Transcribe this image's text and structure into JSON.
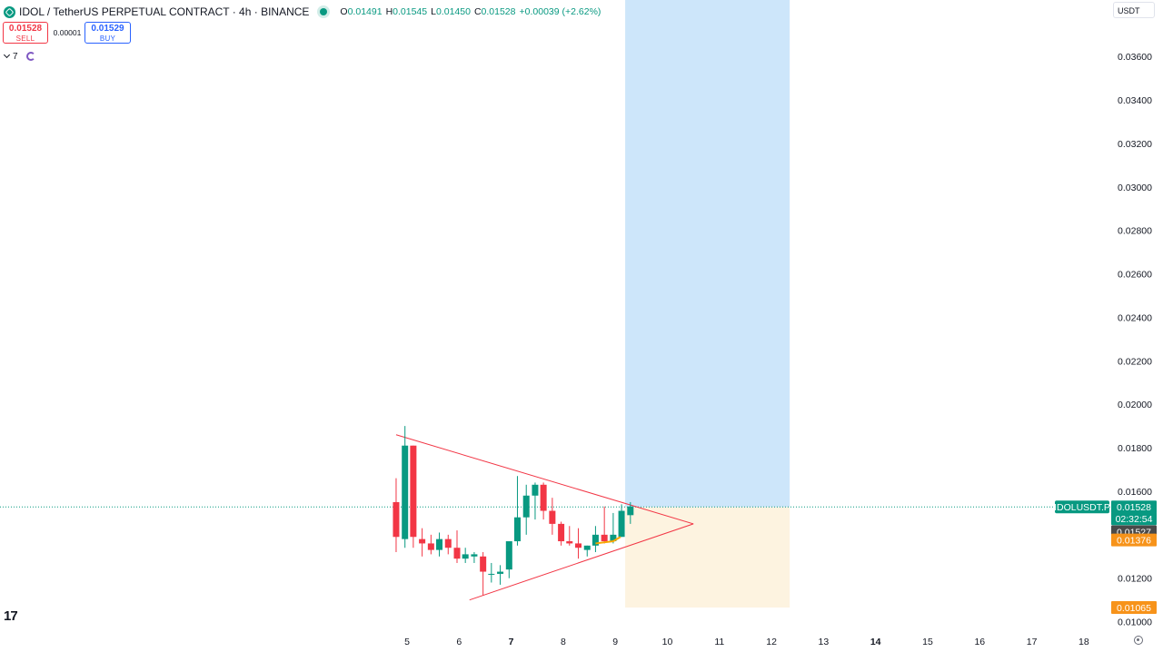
{
  "header": {
    "title": "IDOL / TetherUS PERPETUAL CONTRACT · 4h · BINANCE",
    "ohlc": {
      "o_label": "O",
      "o": "0.01491",
      "h_label": "H",
      "h": "0.01545",
      "l_label": "L",
      "l": "0.01450",
      "c_label": "C",
      "c": "0.01528",
      "change": "+0.00039 (+2.62%)"
    }
  },
  "trade": {
    "sell_price": "0.01528",
    "sell_label": "SELL",
    "spread": "0.00001",
    "buy_price": "0.01529",
    "buy_label": "BUY"
  },
  "indicators": {
    "count": "7"
  },
  "currency": "USDT",
  "branding": {
    "logo_text": "17"
  },
  "colors": {
    "up": "#089981",
    "down": "#f23645",
    "triangle": "#f23645",
    "target_zone": "#cde6fa",
    "stop_zone": "#fdf3e0",
    "current_price_line": "#089981",
    "stop_tag": "#f7931a",
    "countdown_tag": "#4a4a4a",
    "avg_line": "#f7a600"
  },
  "chart_data": {
    "type": "candlestick",
    "symbol_tag": "IDOLUSDT.P",
    "x_labels": [
      "5",
      "6",
      "7",
      "8",
      "9",
      "10",
      "11",
      "12",
      "13",
      "14",
      "15",
      "16",
      "17",
      "18"
    ],
    "x_bold": [
      "7",
      "14"
    ],
    "y_ticks": [
      "0.03600",
      "0.03400",
      "0.03200",
      "0.03000",
      "0.02800",
      "0.02600",
      "0.02400",
      "0.02200",
      "0.02000",
      "0.01800",
      "0.01600",
      "0.01200",
      "0.01000"
    ],
    "y_range": [
      0.0099,
      0.0386
    ],
    "x_range": [
      4.7,
      18.75
    ],
    "candles": [
      {
        "x": 4.79,
        "o": 0.0155,
        "h": 0.0166,
        "l": 0.0132,
        "c": 0.0139
      },
      {
        "x": 4.96,
        "o": 0.0138,
        "h": 0.019,
        "l": 0.0134,
        "c": 0.0181
      },
      {
        "x": 5.12,
        "o": 0.0181,
        "h": 0.0181,
        "l": 0.0134,
        "c": 0.0139
      },
      {
        "x": 5.29,
        "o": 0.0138,
        "h": 0.0143,
        "l": 0.013,
        "c": 0.0136
      },
      {
        "x": 5.46,
        "o": 0.0136,
        "h": 0.014,
        "l": 0.0131,
        "c": 0.0133
      },
      {
        "x": 5.62,
        "o": 0.0133,
        "h": 0.0141,
        "l": 0.013,
        "c": 0.0138
      },
      {
        "x": 5.79,
        "o": 0.0138,
        "h": 0.014,
        "l": 0.0131,
        "c": 0.0134
      },
      {
        "x": 5.96,
        "o": 0.0134,
        "h": 0.0142,
        "l": 0.0127,
        "c": 0.0129
      },
      {
        "x": 6.12,
        "o": 0.0129,
        "h": 0.0134,
        "l": 0.0127,
        "c": 0.0131
      },
      {
        "x": 6.29,
        "o": 0.013,
        "h": 0.0132,
        "l": 0.0127,
        "c": 0.0131
      },
      {
        "x": 6.46,
        "o": 0.013,
        "h": 0.0132,
        "l": 0.0112,
        "c": 0.0123
      },
      {
        "x": 6.62,
        "o": 0.0122,
        "h": 0.0127,
        "l": 0.0118,
        "c": 0.0122
      },
      {
        "x": 6.79,
        "o": 0.0122,
        "h": 0.0126,
        "l": 0.0117,
        "c": 0.0123
      },
      {
        "x": 6.96,
        "o": 0.0124,
        "h": 0.0136,
        "l": 0.012,
        "c": 0.0137
      },
      {
        "x": 7.12,
        "o": 0.0137,
        "h": 0.0167,
        "l": 0.0135,
        "c": 0.0148
      },
      {
        "x": 7.29,
        "o": 0.0148,
        "h": 0.0163,
        "l": 0.014,
        "c": 0.0158
      },
      {
        "x": 7.46,
        "o": 0.0158,
        "h": 0.0164,
        "l": 0.0147,
        "c": 0.0163
      },
      {
        "x": 7.62,
        "o": 0.0163,
        "h": 0.0164,
        "l": 0.0147,
        "c": 0.0151
      },
      {
        "x": 7.79,
        "o": 0.0151,
        "h": 0.0157,
        "l": 0.014,
        "c": 0.0145
      },
      {
        "x": 7.96,
        "o": 0.0145,
        "h": 0.0146,
        "l": 0.0135,
        "c": 0.0137
      },
      {
        "x": 8.12,
        "o": 0.0137,
        "h": 0.0144,
        "l": 0.0135,
        "c": 0.0136
      },
      {
        "x": 8.29,
        "o": 0.0136,
        "h": 0.0143,
        "l": 0.0129,
        "c": 0.0134
      },
      {
        "x": 8.46,
        "o": 0.0133,
        "h": 0.0135,
        "l": 0.013,
        "c": 0.0135
      },
      {
        "x": 8.62,
        "o": 0.0135,
        "h": 0.0144,
        "l": 0.0132,
        "c": 0.014
      },
      {
        "x": 8.79,
        "o": 0.014,
        "h": 0.0153,
        "l": 0.0136,
        "c": 0.0137
      },
      {
        "x": 8.96,
        "o": 0.0137,
        "h": 0.015,
        "l": 0.0136,
        "c": 0.014
      },
      {
        "x": 9.12,
        "o": 0.0139,
        "h": 0.0154,
        "l": 0.0139,
        "c": 0.0151
      },
      {
        "x": 9.29,
        "o": 0.0149,
        "h": 0.0155,
        "l": 0.0145,
        "c": 0.0153
      }
    ],
    "triangle": {
      "upper": [
        [
          4.79,
          0.0186
        ],
        [
          10.5,
          0.0145
        ]
      ],
      "lower": [
        [
          6.2,
          0.011
        ],
        [
          10.5,
          0.0145
        ]
      ]
    },
    "avg_line": [
      [
        8.62,
        0.0136
      ],
      [
        8.96,
        0.0137
      ],
      [
        9.1,
        0.0139
      ]
    ],
    "position": {
      "start": 9.19,
      "end": 12.35,
      "entry": 0.01527,
      "target": 0.0386,
      "stop": 0.01065
    },
    "current_price": 0.01528,
    "price_tags": [
      {
        "label": "0.01528",
        "value": 0.01528,
        "color": "#089981"
      },
      {
        "label": "02:32:54",
        "value": 0.01528,
        "color": "#089981",
        "row": 2
      },
      {
        "label": "0.01527",
        "value": 0.01527,
        "color": "#4a4a4a",
        "row": 3
      },
      {
        "label": "0.01376",
        "value": 0.01376,
        "color": "#f7931a"
      },
      {
        "label": "0.01065",
        "value": 0.01065,
        "color": "#f7931a"
      }
    ]
  }
}
